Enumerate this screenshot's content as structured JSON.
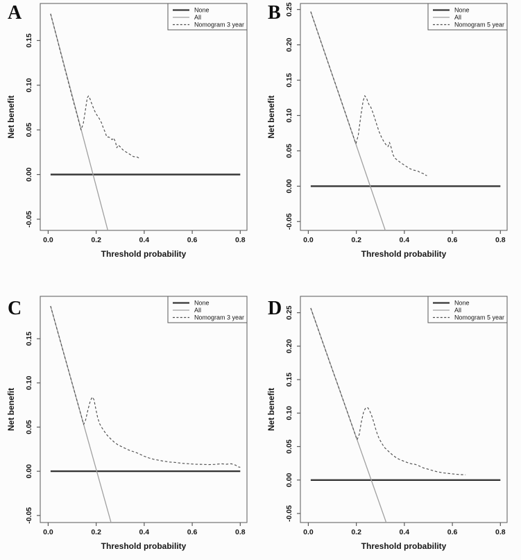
{
  "chart_data": {
    "type": "line",
    "title": "",
    "xlabel": "Threshold probability",
    "ylabel": "Net benefit",
    "grid": false,
    "legend_position": "top-right",
    "style": {
      "background": "#fcfcfc",
      "axis_color": "#595959",
      "text_color": "#161616",
      "none_line_color": "#363636",
      "all_line_color": "#a0a0a0",
      "nomogram_line_color": "#4d4d4d"
    },
    "xlim": [
      -0.033,
      0.828
    ],
    "xticks": [
      0.0,
      0.2,
      0.4,
      0.6,
      0.8
    ],
    "panels": [
      {
        "label": "A",
        "ylim": [
          -0.0625,
          0.1915
        ],
        "yticks": [
          -0.05,
          0.0,
          0.05,
          0.1,
          0.15
        ],
        "series": [
          {
            "name": "None",
            "style": "solid_thick",
            "points": [
              [
                0.01,
                0.0
              ],
              [
                0.8,
                0.0
              ]
            ]
          },
          {
            "name": "All",
            "style": "solid_thin",
            "points": [
              [
                0.01,
                0.18
              ],
              [
                0.252,
                -0.066
              ]
            ]
          },
          {
            "name": "Nomogram 3 year",
            "style": "dashed",
            "points": [
              [
                0.01,
                0.18
              ],
              [
                0.04,
                0.149
              ],
              [
                0.07,
                0.118
              ],
              [
                0.1,
                0.087
              ],
              [
                0.12,
                0.067
              ],
              [
                0.137,
                0.05
              ],
              [
                0.146,
                0.057
              ],
              [
                0.155,
                0.072
              ],
              [
                0.163,
                0.086
              ],
              [
                0.168,
                0.088
              ],
              [
                0.174,
                0.085
              ],
              [
                0.182,
                0.079
              ],
              [
                0.192,
                0.072
              ],
              [
                0.202,
                0.067
              ],
              [
                0.212,
                0.063
              ],
              [
                0.222,
                0.058
              ],
              [
                0.23,
                0.052
              ],
              [
                0.238,
                0.047
              ],
              [
                0.244,
                0.042
              ],
              [
                0.252,
                0.042
              ],
              [
                0.26,
                0.041
              ],
              [
                0.266,
                0.039
              ],
              [
                0.272,
                0.041
              ],
              [
                0.28,
                0.037
              ],
              [
                0.286,
                0.03
              ],
              [
                0.292,
                0.033
              ],
              [
                0.3,
                0.031
              ],
              [
                0.31,
                0.028
              ],
              [
                0.32,
                0.026
              ],
              [
                0.332,
                0.024
              ],
              [
                0.344,
                0.022
              ],
              [
                0.356,
                0.02
              ],
              [
                0.368,
                0.02
              ],
              [
                0.375,
                0.019
              ],
              [
                0.382,
                0.018
              ]
            ]
          }
        ]
      },
      {
        "label": "B",
        "ylim": [
          -0.0625,
          0.2585
        ],
        "yticks": [
          -0.05,
          0.0,
          0.05,
          0.1,
          0.15,
          0.2,
          0.25
        ],
        "series": [
          {
            "name": "None",
            "style": "solid_thick",
            "points": [
              [
                0.01,
                0.0
              ],
              [
                0.8,
                0.0
              ]
            ]
          },
          {
            "name": "All",
            "style": "solid_thin",
            "points": [
              [
                0.01,
                0.247
              ],
              [
                0.324,
                -0.066
              ]
            ]
          },
          {
            "name": "Nomogram 5 year",
            "style": "dashed",
            "points": [
              [
                0.01,
                0.247
              ],
              [
                0.05,
                0.207
              ],
              [
                0.09,
                0.167
              ],
              [
                0.13,
                0.128
              ],
              [
                0.16,
                0.098
              ],
              [
                0.18,
                0.078
              ],
              [
                0.198,
                0.06
              ],
              [
                0.208,
                0.072
              ],
              [
                0.218,
                0.098
              ],
              [
                0.228,
                0.12
              ],
              [
                0.235,
                0.128
              ],
              [
                0.243,
                0.124
              ],
              [
                0.252,
                0.116
              ],
              [
                0.26,
                0.112
              ],
              [
                0.268,
                0.105
              ],
              [
                0.276,
                0.097
              ],
              [
                0.285,
                0.087
              ],
              [
                0.295,
                0.077
              ],
              [
                0.305,
                0.069
              ],
              [
                0.315,
                0.063
              ],
              [
                0.325,
                0.058
              ],
              [
                0.332,
                0.056
              ],
              [
                0.338,
                0.062
              ],
              [
                0.345,
                0.055
              ],
              [
                0.352,
                0.045
              ],
              [
                0.36,
                0.04
              ],
              [
                0.37,
                0.037
              ],
              [
                0.382,
                0.034
              ],
              [
                0.395,
                0.031
              ],
              [
                0.408,
                0.028
              ],
              [
                0.422,
                0.025
              ],
              [
                0.436,
                0.023
              ],
              [
                0.448,
                0.022
              ],
              [
                0.458,
                0.021
              ],
              [
                0.468,
                0.019
              ],
              [
                0.478,
                0.018
              ],
              [
                0.486,
                0.016
              ],
              [
                0.494,
                0.015
              ]
            ]
          }
        ]
      },
      {
        "label": "C",
        "ylim": [
          -0.058,
          0.198
        ],
        "yticks": [
          -0.05,
          0.0,
          0.05,
          0.1,
          0.15
        ],
        "series": [
          {
            "name": "None",
            "style": "solid_thick",
            "points": [
              [
                0.01,
                0.0
              ],
              [
                0.8,
                0.0
              ]
            ]
          },
          {
            "name": "All",
            "style": "solid_thin",
            "points": [
              [
                0.01,
                0.187
              ],
              [
                0.266,
                -0.062
              ]
            ]
          },
          {
            "name": "Nomogram 3 year",
            "style": "dashed",
            "points": [
              [
                0.01,
                0.187
              ],
              [
                0.05,
                0.148
              ],
              [
                0.09,
                0.109
              ],
              [
                0.12,
                0.08
              ],
              [
                0.148,
                0.053
              ],
              [
                0.156,
                0.058
              ],
              [
                0.166,
                0.07
              ],
              [
                0.176,
                0.08
              ],
              [
                0.184,
                0.084
              ],
              [
                0.191,
                0.081
              ],
              [
                0.198,
                0.071
              ],
              [
                0.206,
                0.061
              ],
              [
                0.214,
                0.054
              ],
              [
                0.222,
                0.05
              ],
              [
                0.232,
                0.046
              ],
              [
                0.242,
                0.042
              ],
              [
                0.252,
                0.039
              ],
              [
                0.263,
                0.036
              ],
              [
                0.275,
                0.033
              ],
              [
                0.29,
                0.03
              ],
              [
                0.305,
                0.028
              ],
              [
                0.32,
                0.026
              ],
              [
                0.336,
                0.024
              ],
              [
                0.352,
                0.0225
              ],
              [
                0.368,
                0.021
              ],
              [
                0.384,
                0.019
              ],
              [
                0.4,
                0.017
              ],
              [
                0.42,
                0.015
              ],
              [
                0.44,
                0.0135
              ],
              [
                0.46,
                0.0125
              ],
              [
                0.48,
                0.0115
              ],
              [
                0.505,
                0.0105
              ],
              [
                0.53,
                0.01
              ],
              [
                0.558,
                0.009
              ],
              [
                0.586,
                0.0085
              ],
              [
                0.614,
                0.008
              ],
              [
                0.642,
                0.0078
              ],
              [
                0.668,
                0.0075
              ],
              [
                0.695,
                0.0078
              ],
              [
                0.72,
                0.0085
              ],
              [
                0.742,
                0.008
              ],
              [
                0.762,
                0.0085
              ],
              [
                0.78,
                0.007
              ],
              [
                0.792,
                0.005
              ],
              [
                0.8,
                0.0045
              ]
            ]
          }
        ]
      },
      {
        "label": "D",
        "ylim": [
          -0.0635,
          0.2745
        ],
        "yticks": [
          -0.05,
          0.0,
          0.05,
          0.1,
          0.15,
          0.2,
          0.25
        ],
        "series": [
          {
            "name": "None",
            "style": "solid_thick",
            "points": [
              [
                0.01,
                0.0
              ],
              [
                0.8,
                0.0
              ]
            ]
          },
          {
            "name": "All",
            "style": "solid_thin",
            "points": [
              [
                0.01,
                0.257
              ],
              [
                0.328,
                -0.067
              ]
            ]
          },
          {
            "name": "Nomogram 5 year",
            "style": "dashed",
            "points": [
              [
                0.01,
                0.257
              ],
              [
                0.05,
                0.216
              ],
              [
                0.09,
                0.175
              ],
              [
                0.13,
                0.135
              ],
              [
                0.17,
                0.094
              ],
              [
                0.203,
                0.06
              ],
              [
                0.212,
                0.068
              ],
              [
                0.221,
                0.087
              ],
              [
                0.23,
                0.101
              ],
              [
                0.239,
                0.108
              ],
              [
                0.248,
                0.108
              ],
              [
                0.256,
                0.103
              ],
              [
                0.264,
                0.096
              ],
              [
                0.272,
                0.087
              ],
              [
                0.28,
                0.077
              ],
              [
                0.288,
                0.068
              ],
              [
                0.296,
                0.061
              ],
              [
                0.306,
                0.055
              ],
              [
                0.316,
                0.049
              ],
              [
                0.328,
                0.045
              ],
              [
                0.34,
                0.041
              ],
              [
                0.352,
                0.037
              ],
              [
                0.364,
                0.034
              ],
              [
                0.378,
                0.031
              ],
              [
                0.392,
                0.029
              ],
              [
                0.406,
                0.027
              ],
              [
                0.42,
                0.025
              ],
              [
                0.432,
                0.024
              ],
              [
                0.444,
                0.0235
              ],
              [
                0.456,
                0.022
              ],
              [
                0.468,
                0.02
              ],
              [
                0.48,
                0.018
              ],
              [
                0.492,
                0.017
              ],
              [
                0.505,
                0.0155
              ],
              [
                0.52,
                0.014
              ],
              [
                0.535,
                0.0125
              ],
              [
                0.55,
                0.0115
              ],
              [
                0.565,
                0.0105
              ],
              [
                0.58,
                0.01
              ],
              [
                0.6,
                0.0092
              ],
              [
                0.62,
                0.0085
              ],
              [
                0.64,
                0.008
              ],
              [
                0.655,
                0.0078
              ]
            ]
          }
        ]
      }
    ]
  }
}
